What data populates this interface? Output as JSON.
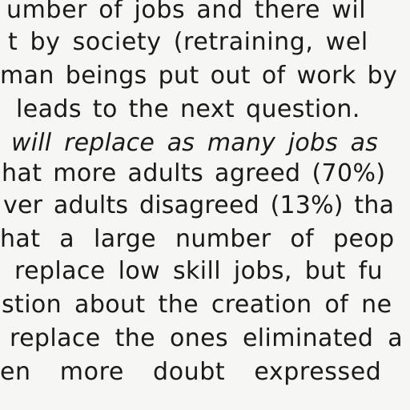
{
  "document": {
    "lines": [
      {
        "text": "umber of jobs and there wil",
        "italic": false
      },
      {
        "text": "t by society (retraining, wel",
        "italic": false
      },
      {
        "text": "man beings put out of work by",
        "italic": false
      },
      {
        "text": "leads to the next question.",
        "italic": false
      },
      {
        "text": "will replace as many jobs as",
        "italic": true
      },
      {
        "text": "hat more adults agreed (70%)",
        "italic": false
      },
      {
        "text": "ver adults disagreed (13%) tha",
        "italic": false
      },
      {
        "text": "hat a large number of peop",
        "italic": false
      },
      {
        "text": "replace low skill jobs, but fu",
        "italic": false
      },
      {
        "text": "stion about the creation of ne",
        "italic": false
      },
      {
        "text": "replace the ones eliminated a",
        "italic": false
      },
      {
        "text": "en more doubt expressed",
        "italic": false
      }
    ]
  }
}
